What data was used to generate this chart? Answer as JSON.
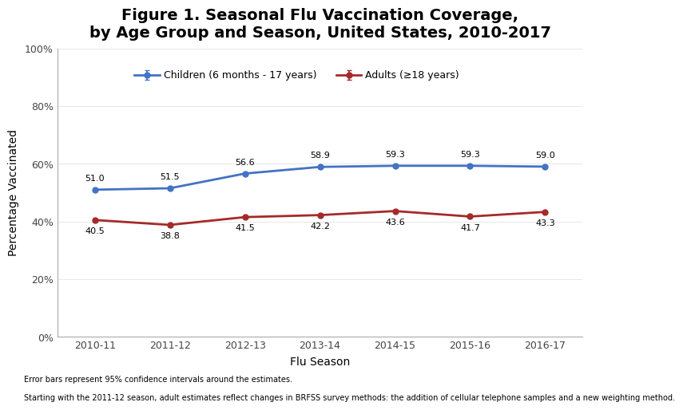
{
  "title": "Figure 1. Seasonal Flu Vaccination Coverage,\nby Age Group and Season, United States, 2010-2017",
  "xlabel": "Flu Season",
  "ylabel": "Percentage Vaccinated",
  "seasons": [
    "2010-11",
    "2011-12",
    "2012-13",
    "2013-14",
    "2014-15",
    "2015-16",
    "2016-17"
  ],
  "children_values": [
    51.0,
    51.5,
    56.6,
    58.9,
    59.3,
    59.3,
    59.0
  ],
  "adults_values": [
    40.5,
    38.8,
    41.5,
    42.2,
    43.6,
    41.7,
    43.3
  ],
  "children_errors": [
    0.6,
    0.5,
    0.5,
    0.5,
    0.4,
    0.4,
    0.4
  ],
  "adults_errors": [
    0.5,
    0.5,
    0.5,
    0.5,
    0.5,
    0.5,
    0.5
  ],
  "children_color": "#4472C4",
  "adults_color": "#A52A2A",
  "children_label": "Children (6 months - 17 years)",
  "adults_label": "Adults (≥18 years)",
  "ylim": [
    0,
    1.0
  ],
  "yticks": [
    0.0,
    0.2,
    0.4,
    0.6,
    0.8,
    1.0
  ],
  "ytick_labels": [
    "0%",
    "20%",
    "40%",
    "60%",
    "80%",
    "100%"
  ],
  "footnote1": "Error bars represent 95% confidence intervals around the estimates.",
  "footnote2": "Starting with the 2011-12 season, adult estimates reflect changes in BRFSS survey methods: the addition of cellular telephone samples and a new weighting method.",
  "bg_color": "#FFFFFF",
  "title_fontsize": 14,
  "axis_label_fontsize": 10,
  "tick_fontsize": 9,
  "legend_fontsize": 9,
  "annotation_fontsize": 8,
  "footnote_fontsize": 7
}
